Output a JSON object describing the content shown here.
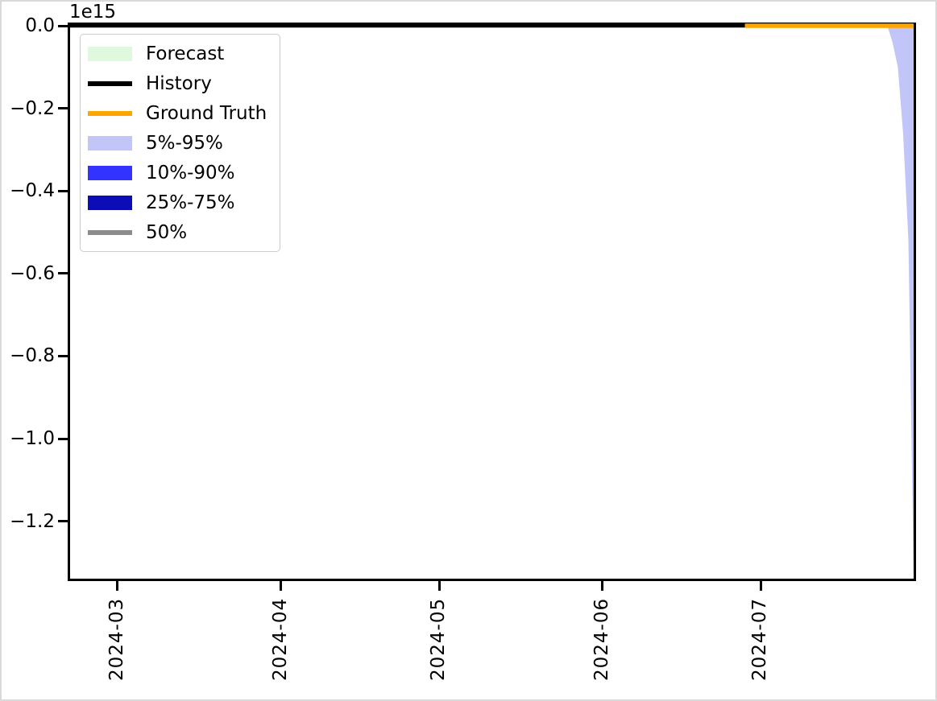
{
  "figure": {
    "background": "#ffffff",
    "frame_border_color": "#d9d9d9",
    "axes_spine_color": "#000000"
  },
  "chart_data": {
    "type": "line",
    "title": "",
    "xlabel": "",
    "ylabel": "",
    "y_offset_label": "1e15",
    "y_unit_scale": 1000000000000000.0,
    "grid": false,
    "legend_position": "upper left",
    "xlim": [
      "2024-02-21",
      "2024-07-30"
    ],
    "ylim": [
      -1.337,
      0.0
    ],
    "x_ticks": [
      {
        "date": "2024-03-01",
        "label": "2024-03"
      },
      {
        "date": "2024-04-01",
        "label": "2024-04"
      },
      {
        "date": "2024-05-01",
        "label": "2024-05"
      },
      {
        "date": "2024-06-01",
        "label": "2024-06"
      },
      {
        "date": "2024-07-01",
        "label": "2024-07"
      }
    ],
    "y_ticks": [
      {
        "value": 0.0,
        "label": "0.0"
      },
      {
        "value": -0.2,
        "label": "−0.2"
      },
      {
        "value": -0.4,
        "label": "−0.4"
      },
      {
        "value": -0.6,
        "label": "−0.6"
      },
      {
        "value": -0.8,
        "label": "−0.8"
      },
      {
        "value": -1.0,
        "label": "−1.0"
      },
      {
        "value": -1.2,
        "label": "−1.2"
      }
    ],
    "bands": [
      {
        "name": "5%-95%",
        "color": "#c2c5f7",
        "x": [
          "2024-06-28",
          "2024-07-25",
          "2024-07-26",
          "2024-07-27",
          "2024-07-28",
          "2024-07-29",
          "2024-07-30"
        ],
        "upper": [
          0,
          0,
          0,
          0,
          0,
          0,
          0
        ],
        "lower": [
          0,
          0,
          -0.04,
          -0.1,
          -0.26,
          -0.52,
          -1.337
        ]
      },
      {
        "name": "10%-90%",
        "color": "#3333ff",
        "x": [
          "2024-06-28",
          "2024-07-30"
        ],
        "upper": [
          0,
          0
        ],
        "lower": [
          0,
          -0.004
        ]
      },
      {
        "name": "25%-75%",
        "color": "#0d0db8",
        "x": [
          "2024-06-28",
          "2024-07-30"
        ],
        "upper": [
          0,
          0
        ],
        "lower": [
          0,
          -0.002
        ]
      }
    ],
    "series": [
      {
        "name": "50%",
        "color": "#8c8c8c",
        "line_width": 4,
        "x": [
          "2024-06-28",
          "2024-07-30"
        ],
        "y": [
          0,
          0
        ]
      },
      {
        "name": "History",
        "color": "#000000",
        "line_width": 4.5,
        "x": [
          "2024-02-21",
          "2024-06-28"
        ],
        "y": [
          0,
          0
        ]
      },
      {
        "name": "Ground Truth",
        "color": "#ffa500",
        "line_width": 5.5,
        "x": [
          "2024-06-28",
          "2024-07-30"
        ],
        "y": [
          0,
          0
        ]
      }
    ],
    "legend": [
      {
        "label": "Forecast",
        "swatch": "patch",
        "color": "#def9de"
      },
      {
        "label": "History",
        "swatch": "line",
        "color": "#000000"
      },
      {
        "label": "Ground Truth",
        "swatch": "line",
        "color": "#ffa500"
      },
      {
        "label": "5%-95%",
        "swatch": "patch",
        "color": "#c2c5f7"
      },
      {
        "label": "10%-90%",
        "swatch": "patch",
        "color": "#3333ff"
      },
      {
        "label": "25%-75%",
        "swatch": "patch",
        "color": "#0d0db8"
      },
      {
        "label": "50%",
        "swatch": "line",
        "color": "#8c8c8c"
      }
    ]
  }
}
